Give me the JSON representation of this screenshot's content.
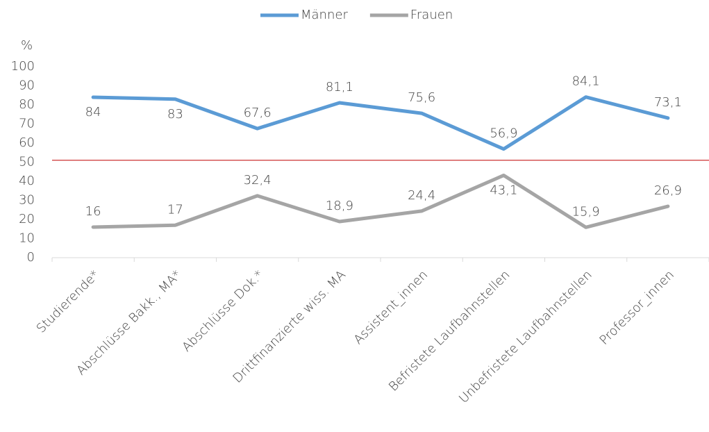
{
  "chart_data": {
    "type": "line",
    "y_label": "%",
    "categories": [
      "Studierende*",
      "Abschlüsse Bakk., MA*",
      "Abschlüsse Dok.*",
      "Drittfinanzierte wiss. MA",
      "Assistent_innen",
      "Befristete Laufbahnstellen",
      "Unbefristete Laufbahnstellen",
      "Professor_innen"
    ],
    "series": [
      {
        "name": "Männer",
        "color": "#5b9bd5",
        "values": [
          84,
          83,
          67.6,
          81.1,
          75.6,
          56.9,
          84.1,
          73.1
        ],
        "value_labels": [
          "84",
          "83",
          "67,6",
          "81,1",
          "75,6",
          "56,9",
          "84,1",
          "73,1"
        ]
      },
      {
        "name": "Frauen",
        "color": "#a5a5a5",
        "values": [
          16,
          17,
          32.4,
          18.9,
          24.4,
          43.1,
          15.9,
          26.9
        ],
        "value_labels": [
          "16",
          "17",
          "32,4",
          "18,9",
          "24,4",
          "43,1",
          "15,9",
          "26,9"
        ]
      }
    ],
    "ylim": [
      0,
      100
    ],
    "yticks": [
      0,
      10,
      20,
      30,
      40,
      50,
      60,
      70,
      80,
      90,
      100
    ],
    "grid": false,
    "legend": "top",
    "reference_line": {
      "value": 51,
      "color": "#c00000"
    }
  }
}
